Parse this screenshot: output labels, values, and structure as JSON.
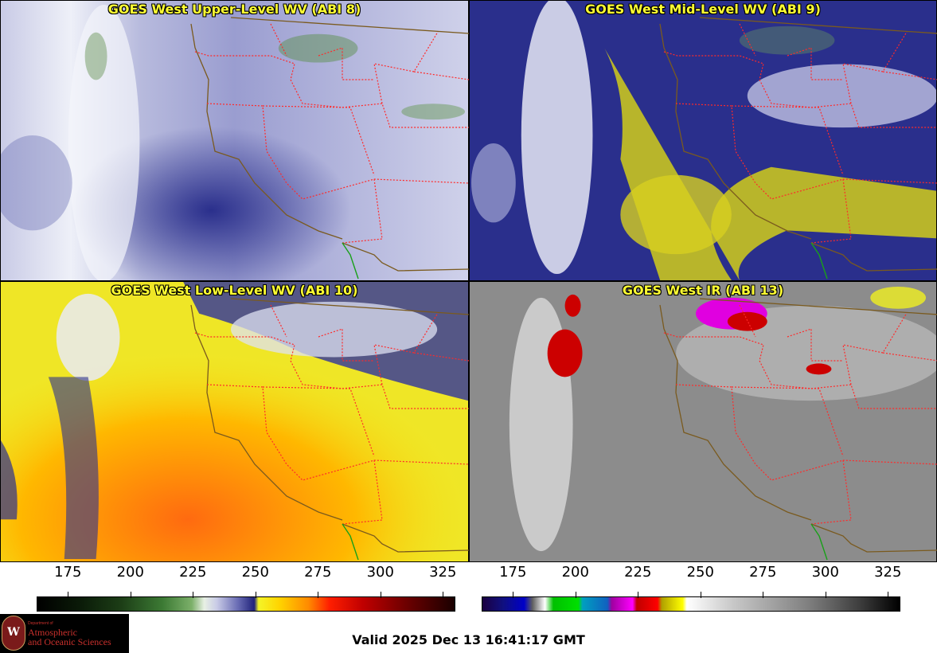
{
  "panels": [
    {
      "title": "GOES West Upper-Level WV (ABI 8)",
      "palette": "upper-wv"
    },
    {
      "title": "GOES West Mid-Level WV (ABI 9)",
      "palette": "mid-wv"
    },
    {
      "title": "GOES West Low-Level WV (ABI 10)",
      "palette": "low-wv"
    },
    {
      "title": "GOES West IR (ABI 13)",
      "palette": "ir"
    }
  ],
  "colorbars": {
    "left": {
      "ticks": [
        "175",
        "200",
        "225",
        "250",
        "275",
        "300",
        "325"
      ],
      "min": 162.5,
      "max": 330
    },
    "right": {
      "ticks": [
        "175",
        "200",
        "225",
        "250",
        "275",
        "300",
        "325"
      ],
      "min": 162.5,
      "max": 330
    }
  },
  "logo": {
    "seal_letter": "W",
    "line1": "Department of",
    "line2": "Atmospheric",
    "line3": "and Oceanic Sciences"
  },
  "valid_time": "Valid 2025 Dec 13 16:41:17 GMT",
  "colors": {
    "title": "#ffff33",
    "coastline": "#7a5a1e",
    "state_borders": "#ff2a2a",
    "mexico_border": "#18a018"
  }
}
